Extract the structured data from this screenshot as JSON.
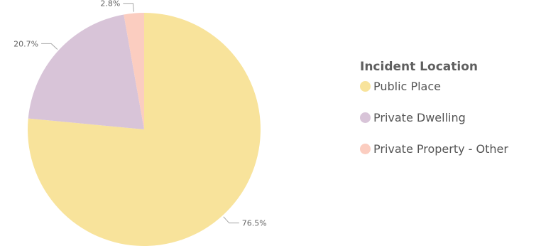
{
  "chart_data": {
    "type": "pie",
    "legend_title": "Incident Location",
    "legend_position": "right",
    "slices": [
      {
        "name": "Public Place",
        "value": 76.5,
        "label": "76.5%",
        "color": "#f8e39b"
      },
      {
        "name": "Private Dwelling",
        "value": 20.7,
        "label": "20.7%",
        "color": "#d8c4d8"
      },
      {
        "name": "Private Property - Other",
        "value": 2.8,
        "label": "2.8%",
        "color": "#fbcdc0"
      }
    ]
  }
}
